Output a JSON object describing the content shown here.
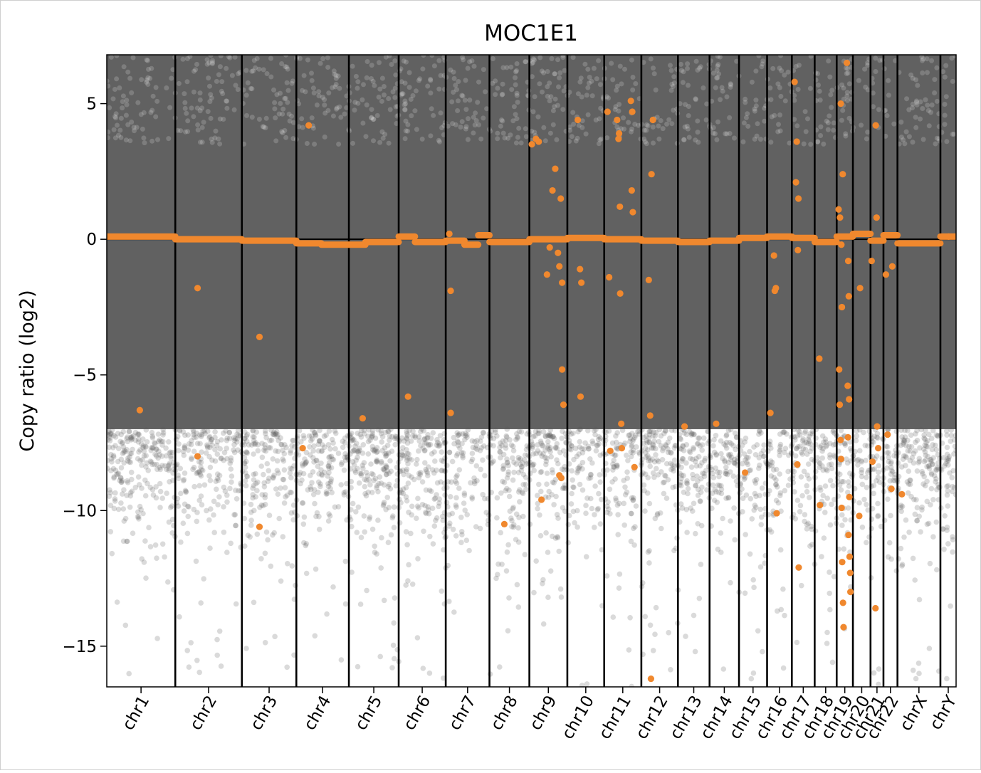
{
  "chart_data": {
    "type": "scatter",
    "title": "MOC1E1",
    "xlabel": "",
    "ylabel": "Copy ratio (log2)",
    "ylim": [
      -16.5,
      6.8
    ],
    "yticks": [
      {
        "value": 5,
        "label": "5"
      },
      {
        "value": 0,
        "label": "0"
      },
      {
        "value": -5,
        "label": "−5"
      },
      {
        "value": -10,
        "label": "−10"
      },
      {
        "value": -15,
        "label": "−15"
      }
    ],
    "grid": false,
    "colors": {
      "bins": "#555555",
      "segments": "#f0882e",
      "boundary": "#000000"
    },
    "chromosomes": [
      {
        "name": "chr1",
        "start": 0,
        "end": 249
      },
      {
        "name": "chr2",
        "start": 249,
        "end": 491
      },
      {
        "name": "chr3",
        "start": 491,
        "end": 689
      },
      {
        "name": "chr4",
        "start": 689,
        "end": 880
      },
      {
        "name": "chr5",
        "start": 880,
        "end": 1061
      },
      {
        "name": "chr6",
        "start": 1061,
        "end": 1232
      },
      {
        "name": "chr7",
        "start": 1232,
        "end": 1391
      },
      {
        "name": "chr8",
        "start": 1391,
        "end": 1536
      },
      {
        "name": "chr9",
        "start": 1536,
        "end": 1674
      },
      {
        "name": "chr10",
        "start": 1674,
        "end": 1808
      },
      {
        "name": "chr11",
        "start": 1808,
        "end": 1943
      },
      {
        "name": "chr12",
        "start": 1943,
        "end": 2076
      },
      {
        "name": "chr13",
        "start": 2076,
        "end": 2191
      },
      {
        "name": "chr14",
        "start": 2191,
        "end": 2298
      },
      {
        "name": "chr15",
        "start": 2298,
        "end": 2400
      },
      {
        "name": "chr16",
        "start": 2400,
        "end": 2490
      },
      {
        "name": "chr17",
        "start": 2490,
        "end": 2573
      },
      {
        "name": "chr18",
        "start": 2573,
        "end": 2653
      },
      {
        "name": "chr19",
        "start": 2653,
        "end": 2712
      },
      {
        "name": "chr20",
        "start": 2712,
        "end": 2776
      },
      {
        "name": "chr21",
        "start": 2776,
        "end": 2823
      },
      {
        "name": "chr22",
        "start": 2823,
        "end": 2874
      },
      {
        "name": "chrX",
        "start": 2874,
        "end": 3030
      },
      {
        "name": "chrY",
        "start": 3030,
        "end": 3087
      }
    ],
    "segments": [
      {
        "x": [
          0,
          249
        ],
        "y": 0.1
      },
      {
        "x": [
          249,
          491
        ],
        "y": 0.0
      },
      {
        "x": [
          491,
          689
        ],
        "y": -0.05
      },
      {
        "x": [
          689,
          780
        ],
        "y": -0.15
      },
      {
        "x": [
          780,
          880
        ],
        "y": -0.2
      },
      {
        "x": [
          880,
          940
        ],
        "y": -0.2
      },
      {
        "x": [
          940,
          1061
        ],
        "y": -0.1
      },
      {
        "x": [
          1061,
          1120
        ],
        "y": 0.1
      },
      {
        "x": [
          1120,
          1232
        ],
        "y": -0.1
      },
      {
        "x": [
          1232,
          1300
        ],
        "y": -0.05
      },
      {
        "x": [
          1300,
          1350
        ],
        "y": -0.2
      },
      {
        "x": [
          1350,
          1391
        ],
        "y": 0.15
      },
      {
        "x": [
          1391,
          1536
        ],
        "y": -0.1
      },
      {
        "x": [
          1536,
          1674
        ],
        "y": 0.0
      },
      {
        "x": [
          1674,
          1808
        ],
        "y": 0.05
      },
      {
        "x": [
          1808,
          1943
        ],
        "y": 0.0
      },
      {
        "x": [
          1943,
          2076
        ],
        "y": -0.05
      },
      {
        "x": [
          2076,
          2191
        ],
        "y": -0.1
      },
      {
        "x": [
          2191,
          2298
        ],
        "y": -0.05
      },
      {
        "x": [
          2298,
          2400
        ],
        "y": 0.05
      },
      {
        "x": [
          2400,
          2490
        ],
        "y": 0.1
      },
      {
        "x": [
          2490,
          2573
        ],
        "y": 0.05
      },
      {
        "x": [
          2573,
          2653
        ],
        "y": -0.1
      },
      {
        "x": [
          2653,
          2712
        ],
        "y": 0.1
      },
      {
        "x": [
          2712,
          2776
        ],
        "y": 0.2
      },
      {
        "x": [
          2776,
          2823
        ],
        "y": -0.05
      },
      {
        "x": [
          2823,
          2874
        ],
        "y": 0.15
      },
      {
        "x": [
          2874,
          3030
        ],
        "y": -0.15
      },
      {
        "x": [
          3030,
          3087
        ],
        "y": 0.1
      }
    ],
    "segment_points": [
      {
        "x": 120,
        "y": -6.3
      },
      {
        "x": 330,
        "y": -1.8
      },
      {
        "x": 330,
        "y": -8.0
      },
      {
        "x": 555,
        "y": -3.6
      },
      {
        "x": 555,
        "y": -10.6
      },
      {
        "x": 734,
        "y": 4.2
      },
      {
        "x": 712,
        "y": -7.7
      },
      {
        "x": 930,
        "y": -6.6
      },
      {
        "x": 1095,
        "y": -5.8
      },
      {
        "x": 1250,
        "y": -1.9
      },
      {
        "x": 1250,
        "y": -6.4
      },
      {
        "x": 1245,
        "y": 0.2
      },
      {
        "x": 1445,
        "y": -10.5
      },
      {
        "x": 1545,
        "y": 3.5
      },
      {
        "x": 1560,
        "y": 3.7
      },
      {
        "x": 1570,
        "y": 3.6
      },
      {
        "x": 1580,
        "y": -9.6
      },
      {
        "x": 1620,
        "y": 1.8
      },
      {
        "x": 1630,
        "y": 2.6
      },
      {
        "x": 1640,
        "y": -0.5
      },
      {
        "x": 1645,
        "y": -1.0
      },
      {
        "x": 1650,
        "y": 1.5
      },
      {
        "x": 1655,
        "y": -4.8
      },
      {
        "x": 1660,
        "y": -6.1
      },
      {
        "x": 1645,
        "y": -8.7
      },
      {
        "x": 1652,
        "y": -8.8
      },
      {
        "x": 1600,
        "y": -1.3
      },
      {
        "x": 1610,
        "y": -0.3
      },
      {
        "x": 1655,
        "y": -1.6
      },
      {
        "x": 1712,
        "y": 4.4
      },
      {
        "x": 1720,
        "y": -1.1
      },
      {
        "x": 1722,
        "y": -5.8
      },
      {
        "x": 1725,
        "y": -1.6
      },
      {
        "x": 1820,
        "y": 4.7
      },
      {
        "x": 1826,
        "y": -1.4
      },
      {
        "x": 1830,
        "y": -7.8
      },
      {
        "x": 1855,
        "y": 4.4
      },
      {
        "x": 1860,
        "y": 3.7
      },
      {
        "x": 1862,
        "y": 3.9
      },
      {
        "x": 1865,
        "y": 1.2
      },
      {
        "x": 1866,
        "y": -2.0
      },
      {
        "x": 1870,
        "y": -6.8
      },
      {
        "x": 1872,
        "y": -7.7
      },
      {
        "x": 1905,
        "y": 5.1
      },
      {
        "x": 1908,
        "y": 1.8
      },
      {
        "x": 1910,
        "y": 4.7
      },
      {
        "x": 1912,
        "y": 1.0
      },
      {
        "x": 1918,
        "y": -8.4
      },
      {
        "x": 1980,
        "y": 2.4
      },
      {
        "x": 1985,
        "y": 4.4
      },
      {
        "x": 1970,
        "y": -1.5
      },
      {
        "x": 1975,
        "y": -6.5
      },
      {
        "x": 1978,
        "y": -16.2
      },
      {
        "x": 2100,
        "y": -6.9
      },
      {
        "x": 2215,
        "y": -6.8
      },
      {
        "x": 2320,
        "y": -8.6
      },
      {
        "x": 2425,
        "y": -0.6
      },
      {
        "x": 2428,
        "y": -1.9
      },
      {
        "x": 2432,
        "y": -1.8
      },
      {
        "x": 2435,
        "y": -10.1
      },
      {
        "x": 2412,
        "y": -6.4
      },
      {
        "x": 2500,
        "y": 5.8
      },
      {
        "x": 2508,
        "y": 3.6
      },
      {
        "x": 2505,
        "y": 2.1
      },
      {
        "x": 2514,
        "y": 1.5
      },
      {
        "x": 2510,
        "y": -8.3
      },
      {
        "x": 2515,
        "y": -12.1
      },
      {
        "x": 2512,
        "y": -0.4
      },
      {
        "x": 2590,
        "y": -4.4
      },
      {
        "x": 2592,
        "y": -9.8
      },
      {
        "x": 2660,
        "y": 1.1
      },
      {
        "x": 2665,
        "y": 0.8
      },
      {
        "x": 2670,
        "y": -0.2
      },
      {
        "x": 2675,
        "y": 2.4
      },
      {
        "x": 2668,
        "y": 5.0
      },
      {
        "x": 2672,
        "y": -2.5
      },
      {
        "x": 2662,
        "y": -4.8
      },
      {
        "x": 2664,
        "y": -6.1
      },
      {
        "x": 2667,
        "y": -7.4
      },
      {
        "x": 2669,
        "y": -8.1
      },
      {
        "x": 2671,
        "y": -9.9
      },
      {
        "x": 2673,
        "y": -11.9
      },
      {
        "x": 2676,
        "y": -13.4
      },
      {
        "x": 2678,
        "y": -14.3
      },
      {
        "x": 2690,
        "y": 6.5
      },
      {
        "x": 2695,
        "y": -0.8
      },
      {
        "x": 2697,
        "y": -2.1
      },
      {
        "x": 2693,
        "y": -5.4
      },
      {
        "x": 2698,
        "y": -5.9
      },
      {
        "x": 2694,
        "y": -7.3
      },
      {
        "x": 2699,
        "y": -9.5
      },
      {
        "x": 2696,
        "y": -10.9
      },
      {
        "x": 2700,
        "y": -11.7
      },
      {
        "x": 2702,
        "y": -12.3
      },
      {
        "x": 2703,
        "y": -13.0
      },
      {
        "x": 2738,
        "y": -1.8
      },
      {
        "x": 2735,
        "y": -10.2
      },
      {
        "x": 2780,
        "y": -0.8
      },
      {
        "x": 2783,
        "y": -8.2
      },
      {
        "x": 2795,
        "y": 4.2
      },
      {
        "x": 2798,
        "y": 0.8
      },
      {
        "x": 2800,
        "y": -6.9
      },
      {
        "x": 2804,
        "y": -7.7
      },
      {
        "x": 2794,
        "y": -13.6
      },
      {
        "x": 2832,
        "y": -1.3
      },
      {
        "x": 2838,
        "y": -7.2
      },
      {
        "x": 2852,
        "y": -9.2
      },
      {
        "x": 2855,
        "y": -1.0
      },
      {
        "x": 2890,
        "y": -9.4
      },
      {
        "x": 3060,
        "y": 0.1
      }
    ]
  }
}
